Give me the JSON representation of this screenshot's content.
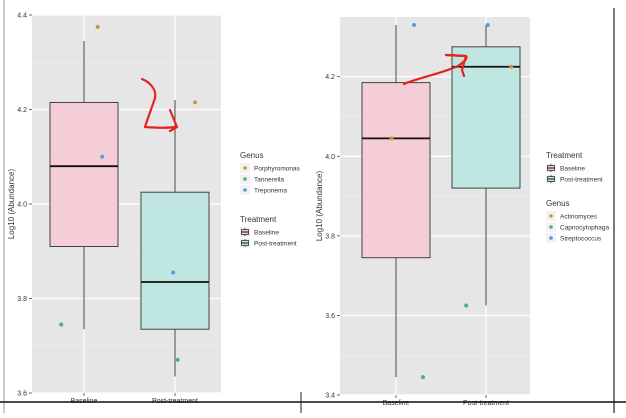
{
  "chart_data": [
    {
      "type": "box",
      "title": "",
      "xlabel": "",
      "ylabel": "Log10 (Abundance)",
      "ylim": [
        3.6,
        4.4
      ],
      "yticks": [
        3.6,
        3.8,
        4.0,
        4.2,
        4.4
      ],
      "ytick_labels": [
        "3.6",
        "3.8",
        "4.0",
        "4.2",
        "4.4"
      ],
      "categories": [
        "Baseline",
        "Post-treatment"
      ],
      "grid": true,
      "legend_position": "right",
      "boxes": [
        {
          "category": "Baseline",
          "treatment": "Baseline",
          "fill": "#f4cdd6",
          "whisker_low": 3.735,
          "q1": 3.91,
          "median": 4.08,
          "q3": 4.215,
          "whisker_high": 4.345
        },
        {
          "category": "Post-treatment",
          "treatment": "Post-treatment",
          "fill": "#bfe6e0",
          "whisker_low": 3.635,
          "q1": 3.735,
          "median": 3.835,
          "q3": 4.025,
          "whisker_high": 4.22
        }
      ],
      "points": [
        {
          "category": "Baseline",
          "genus": "Porphyromonas",
          "y": 4.375,
          "offset": 0.15
        },
        {
          "category": "Baseline",
          "genus": "Treponema",
          "y": 4.1,
          "offset": 0.2
        },
        {
          "category": "Baseline",
          "genus": "Tannerella",
          "y": 3.745,
          "offset": -0.25
        },
        {
          "category": "Post-treatment",
          "genus": "Porphyromonas",
          "y": 4.215,
          "offset": 0.22
        },
        {
          "category": "Post-treatment",
          "genus": "Treponema",
          "y": 3.855,
          "offset": -0.02
        },
        {
          "category": "Post-treatment",
          "genus": "Tannerella",
          "y": 3.67,
          "offset": 0.03
        }
      ],
      "legends": [
        {
          "title": "Genus",
          "kind": "point",
          "items": [
            {
              "label": "Porphyromonas",
              "color": "#c8963c"
            },
            {
              "label": "Tannerella",
              "color": "#49ae8e"
            },
            {
              "label": "Treponema",
              "color": "#5b9bd5"
            }
          ]
        },
        {
          "title": "Treatment",
          "kind": "box",
          "items": [
            {
              "label": "Baseline",
              "color": "#f4cdd6"
            },
            {
              "label": "Post-treatment",
              "color": "#bfe6e0"
            }
          ]
        }
      ],
      "annotation": {
        "kind": "hand-drawn-arrow",
        "color": "#e8231f",
        "target": "Post-treatment upper whisker"
      }
    },
    {
      "type": "box",
      "title": "",
      "xlabel": "",
      "ylabel": "Log10 (Abundance)",
      "ylim": [
        3.4,
        4.35
      ],
      "yticks": [
        3.4,
        3.6,
        3.8,
        4.0,
        4.2
      ],
      "ytick_labels": [
        "3.4",
        "3.6",
        "3.8",
        "4.0",
        "4.2"
      ],
      "categories": [
        "Baseline",
        "Post-treatment"
      ],
      "grid": true,
      "legend_position": "right",
      "boxes": [
        {
          "category": "Baseline",
          "treatment": "Baseline",
          "fill": "#f4cdd6",
          "whisker_low": 3.445,
          "q1": 3.745,
          "median": 4.045,
          "q3": 4.185,
          "whisker_high": 4.33
        },
        {
          "category": "Post-treatment",
          "treatment": "Post-treatment",
          "fill": "#bfe6e0",
          "whisker_low": 3.625,
          "q1": 3.92,
          "median": 4.225,
          "q3": 4.275,
          "whisker_high": 4.33
        }
      ],
      "points": [
        {
          "category": "Baseline",
          "genus": "Streptococcus",
          "y": 4.33,
          "offset": 0.2
        },
        {
          "category": "Baseline",
          "genus": "Actinomyces",
          "y": 4.045,
          "offset": -0.05
        },
        {
          "category": "Baseline",
          "genus": "Capnocytophaga",
          "y": 3.445,
          "offset": 0.3
        },
        {
          "category": "Post-treatment",
          "genus": "Streptococcus",
          "y": 4.33,
          "offset": 0.02
        },
        {
          "category": "Post-treatment",
          "genus": "Actinomyces",
          "y": 4.225,
          "offset": 0.28
        },
        {
          "category": "Post-treatment",
          "genus": "Capnocytophaga",
          "y": 3.625,
          "offset": -0.22
        }
      ],
      "legends": [
        {
          "title": "Treatment",
          "kind": "box",
          "items": [
            {
              "label": "Baseline",
              "color": "#f4cdd6"
            },
            {
              "label": "Post-treatment",
              "color": "#bfe6e0"
            }
          ]
        },
        {
          "title": "Genus",
          "kind": "point",
          "items": [
            {
              "label": "Actinomyces",
              "color": "#c8963c"
            },
            {
              "label": "Capnocytophaga",
              "color": "#49ae8e"
            },
            {
              "label": "Streptococcus",
              "color": "#5b9bd5"
            }
          ]
        }
      ],
      "annotation": {
        "kind": "hand-drawn-arrow",
        "color": "#e8231f",
        "target": "Post-treatment box"
      }
    }
  ],
  "colors": {
    "panel_bg": "#e6e6e6",
    "grid": "#ffffff",
    "annotation": "#e8231f"
  }
}
